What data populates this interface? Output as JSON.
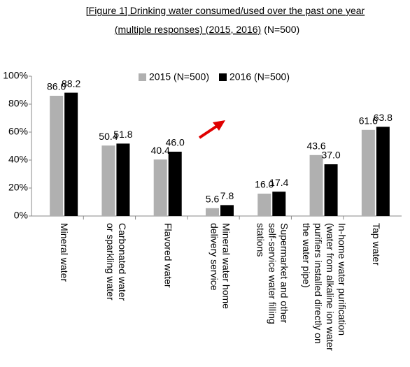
{
  "chart_data": {
    "type": "bar",
    "title": "[Figure 1] Drinking water consumed/used over the past one year",
    "subtitle": "(multiple responses) (2015, 2016)",
    "subtitle_note": "(N=500)",
    "categories": [
      "Mineral water",
      "Carbonated water\nor sparkling water",
      "Flavored water",
      "Mineral water home\ndelivery service",
      "Supermarket and other\nself-service water filling\nstations",
      "In-home water purification\n(water from alkaline ion water\npurifiers installed directly on\nthe water pipe)",
      "Tap water"
    ],
    "series": [
      {
        "name": "2015 (N=500)",
        "color": "#b0b0b0",
        "values": [
          86.0,
          50.4,
          40.4,
          5.6,
          16.0,
          43.6,
          61.6
        ],
        "value_labels": [
          "86.0",
          "50.4",
          "40.4",
          "5.6",
          "16.0",
          "43.6",
          "61.6"
        ]
      },
      {
        "name": "2016 (N=500)",
        "color": "#000000",
        "values": [
          88.2,
          51.8,
          46.0,
          7.8,
          17.4,
          37.0,
          63.8
        ],
        "value_labels": [
          "88.2",
          "51.8",
          "46.0",
          "7.8",
          "17.4",
          "37.0",
          "63.8"
        ]
      }
    ],
    "ylim": [
      0,
      100
    ],
    "yticks": [
      {
        "value": 0,
        "label": "0%"
      },
      {
        "value": 20,
        "label": "20%"
      },
      {
        "value": 40,
        "label": "40%"
      },
      {
        "value": 60,
        "label": "60%"
      },
      {
        "value": 80,
        "label": "80%"
      },
      {
        "value": 100,
        "label": "100%"
      }
    ],
    "grid": false,
    "legend": "top-right"
  }
}
